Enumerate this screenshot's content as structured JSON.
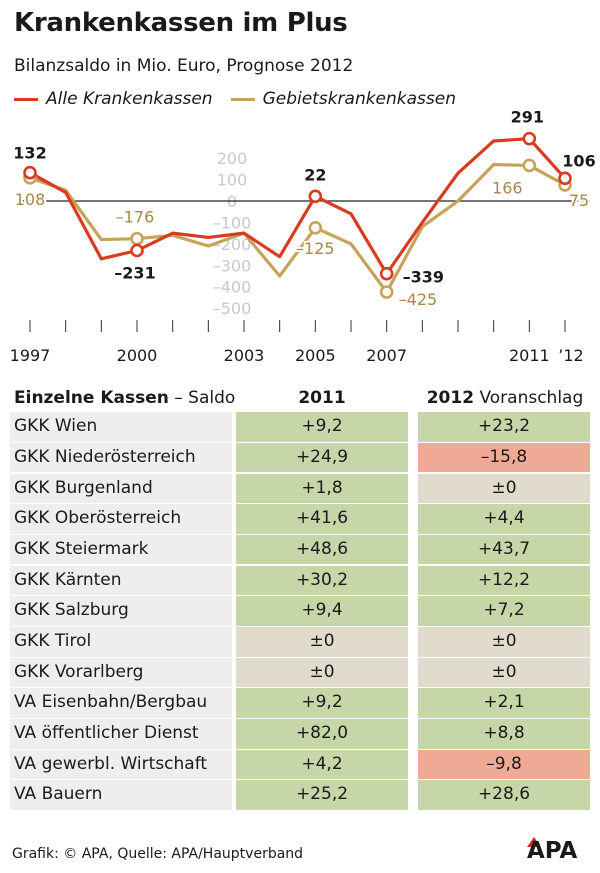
{
  "title": "Krankenkassen im Plus",
  "subtitle": "Bilanzsaldo in Mio. Euro, Prognose 2012",
  "colors": {
    "alle": "#d83b20",
    "gebiets": "#c6a35b",
    "positive": "#c7d6a8",
    "negative": "#efaa95",
    "neutral": "#e0dbcc",
    "grid_label": "#c8c8c8"
  },
  "chart_data": {
    "type": "line",
    "ylim": [
      -560,
      240
    ],
    "y_ticks": [
      200,
      100,
      0,
      -100,
      -200,
      -300,
      -400,
      -500
    ],
    "y_tick_labels": [
      "200",
      "100",
      "0",
      "–100",
      "–200",
      "–300",
      "–400",
      "–500"
    ],
    "x": [
      1997,
      1998,
      1999,
      2000,
      2001,
      2002,
      2003,
      2004,
      2005,
      2006,
      2007,
      2008,
      2009,
      2010,
      2011,
      2012
    ],
    "x_tick_years": [
      1997,
      2000,
      2003,
      2005,
      2007,
      2011,
      2012
    ],
    "x_tick_labels": [
      "1997",
      "2000",
      "2003",
      "2005",
      "2007",
      "2011",
      "’12"
    ],
    "series": [
      {
        "name": "Alle Krankenkassen",
        "values": [
          132,
          40,
          -270,
          -231,
          -150,
          -170,
          -150,
          -260,
          22,
          -60,
          -339,
          -100,
          130,
          280,
          291,
          106
        ],
        "markers": [
          0,
          3,
          8,
          10,
          14,
          15
        ]
      },
      {
        "name": "Gebietskrankenkassen",
        "values": [
          108,
          50,
          -180,
          -176,
          -160,
          -210,
          -150,
          -350,
          -125,
          -200,
          -425,
          -120,
          0,
          170,
          166,
          75
        ],
        "markers": [
          0,
          3,
          8,
          10,
          14,
          15
        ]
      }
    ],
    "labels": [
      {
        "series": 0,
        "idx": 0,
        "text": "132"
      },
      {
        "series": 1,
        "idx": 0,
        "text": "108"
      },
      {
        "series": 1,
        "idx": 3,
        "text": "–176"
      },
      {
        "series": 0,
        "idx": 3,
        "text": "–231"
      },
      {
        "series": 0,
        "idx": 8,
        "text": "22"
      },
      {
        "series": 1,
        "idx": 8,
        "text": "–125"
      },
      {
        "series": 0,
        "idx": 10,
        "text": "–339"
      },
      {
        "series": 1,
        "idx": 10,
        "text": "–425"
      },
      {
        "series": 0,
        "idx": 14,
        "text": "291"
      },
      {
        "series": 1,
        "idx": 14,
        "text": "166"
      },
      {
        "series": 0,
        "idx": 15,
        "text": "106"
      },
      {
        "series": 1,
        "idx": 15,
        "text": "75"
      }
    ]
  },
  "table": {
    "header_name_bold": "Einzelne Kassen",
    "header_name_rest": " – Saldo",
    "header_2011": "2011",
    "header_2012_bold": "2012",
    "header_2012_rest": " Voranschlag",
    "rows": [
      {
        "name": "GKK Wien",
        "v2011": "+9,2",
        "v2012": "+23,2",
        "s2011": "positive",
        "s2012": "positive"
      },
      {
        "name": "GKK Niederösterreich",
        "v2011": "+24,9",
        "v2012": "–15,8",
        "s2011": "positive",
        "s2012": "negative"
      },
      {
        "name": "GKK Burgenland",
        "v2011": "+1,8",
        "v2012": "±0",
        "s2011": "positive",
        "s2012": "neutral"
      },
      {
        "name": "GKK Oberösterreich",
        "v2011": "+41,6",
        "v2012": "+4,4",
        "s2011": "positive",
        "s2012": "positive"
      },
      {
        "name": "GKK Steiermark",
        "v2011": "+48,6",
        "v2012": "+43,7",
        "s2011": "positive",
        "s2012": "positive"
      },
      {
        "name": "GKK Kärnten",
        "v2011": "+30,2",
        "v2012": "+12,2",
        "s2011": "positive",
        "s2012": "positive"
      },
      {
        "name": "GKK Salzburg",
        "v2011": "+9,4",
        "v2012": "+7,2",
        "s2011": "positive",
        "s2012": "positive"
      },
      {
        "name": "GKK Tirol",
        "v2011": "±0",
        "v2012": "±0",
        "s2011": "neutral",
        "s2012": "neutral"
      },
      {
        "name": "GKK Vorarlberg",
        "v2011": "±0",
        "v2012": "±0",
        "s2011": "neutral",
        "s2012": "neutral"
      },
      {
        "name": "VA Eisenbahn/Bergbau",
        "v2011": "+9,2",
        "v2012": "+2,1",
        "s2011": "positive",
        "s2012": "positive"
      },
      {
        "name": "VA öffentlicher Dienst",
        "v2011": "+82,0",
        "v2012": "+8,8",
        "s2011": "positive",
        "s2012": "positive"
      },
      {
        "name": "VA gewerbl. Wirtschaft",
        "v2011": "+4,2",
        "v2012": "–9,8",
        "s2011": "positive",
        "s2012": "negative"
      },
      {
        "name": "VA Bauern",
        "v2011": "+25,2",
        "v2012": "+28,6",
        "s2011": "positive",
        "s2012": "positive"
      }
    ]
  },
  "footer": "Grafik: © APA, Quelle: APA/Hauptverband",
  "logo": "APA"
}
